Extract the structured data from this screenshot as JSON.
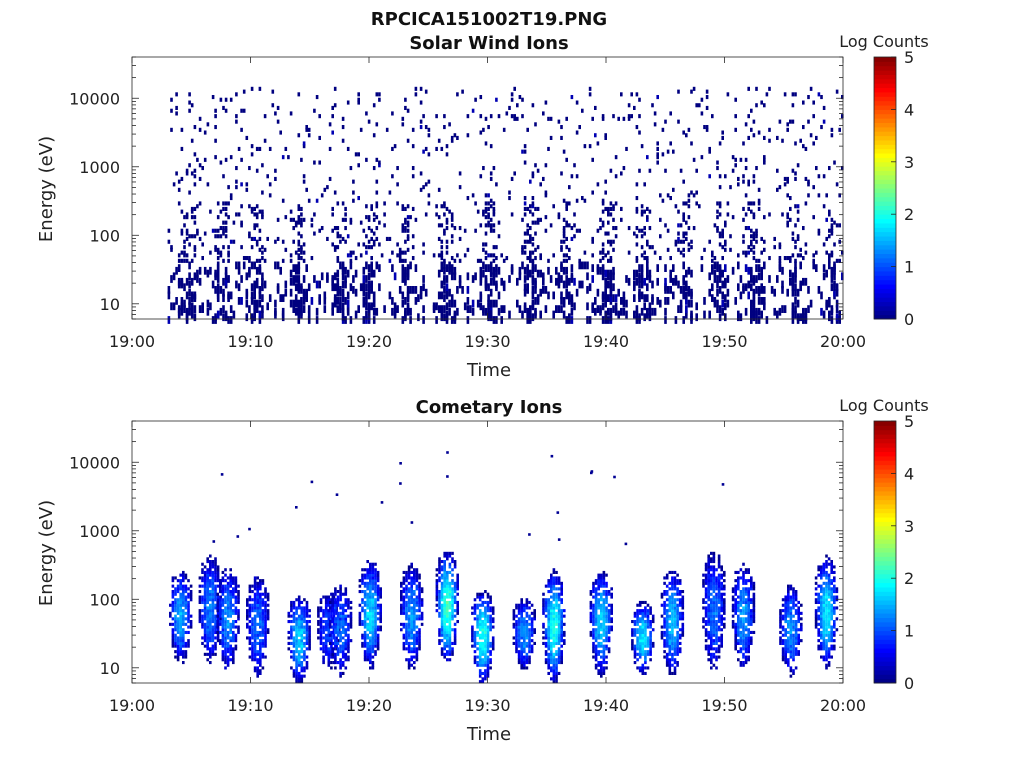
{
  "figure": {
    "title": "RPCICA151002T19.PNG"
  },
  "chart_data": [
    {
      "type": "heatmap",
      "title": "Solar Wind Ions",
      "xlabel": "Time",
      "ylabel": "Energy (eV)",
      "x_ticks": [
        "19:00",
        "19:10",
        "19:20",
        "19:30",
        "19:40",
        "19:50",
        "20:00"
      ],
      "xlim": [
        "19:00",
        "20:00"
      ],
      "y_scale": "log",
      "y_ticks": [
        "10",
        "100",
        "1000",
        "10000"
      ],
      "ylim": [
        6,
        40000
      ],
      "colorbar": {
        "label": "Log Counts",
        "ticks": [
          "0",
          "1",
          "2",
          "3",
          "4",
          "5"
        ],
        "range": [
          0,
          5
        ],
        "colormap": "jet"
      },
      "description_of_values": "sparse counts mostly at log level ~0 across all energies 5 eV–30 keV from 19:03 to 20:00, denser bursts at low energy (<300 eV)",
      "bursts_minutes": [
        4.5,
        7.5,
        10.5,
        14,
        17.5,
        20,
        23,
        26.5,
        30,
        33.5,
        36.5,
        40,
        43,
        46.5,
        49.5,
        52.5,
        56,
        59
      ],
      "sparse_time_range_minutes": [
        3,
        60
      ],
      "sparse_energy_range_eV": [
        6,
        15000
      ],
      "typical_level": 0
    },
    {
      "type": "heatmap",
      "title": "Cometary Ions",
      "xlabel": "Time",
      "ylabel": "Energy (eV)",
      "x_ticks": [
        "19:00",
        "19:10",
        "19:20",
        "19:30",
        "19:40",
        "19:50",
        "20:00"
      ],
      "xlim": [
        "19:00",
        "20:00"
      ],
      "y_scale": "log",
      "y_ticks": [
        "10",
        "100",
        "1000",
        "10000"
      ],
      "ylim": [
        6,
        40000
      ],
      "colorbar": {
        "label": "Log Counts",
        "ticks": [
          "0",
          "1",
          "2",
          "3",
          "4",
          "5"
        ],
        "range": [
          0,
          5
        ],
        "colormap": "jet"
      },
      "description_of_values": "periodic ion bursts every ~3.3 min between ~6 eV and ~500 eV, peak log counts ~1.5–2",
      "bursts": [
        {
          "t": 4.0,
          "elo": 12,
          "ehi": 250,
          "peak": 1.3
        },
        {
          "t": 6.5,
          "elo": 12,
          "ehi": 400,
          "peak": 1.1
        },
        {
          "t": 8.0,
          "elo": 10,
          "ehi": 260,
          "peak": 1.2
        },
        {
          "t": 10.5,
          "elo": 8,
          "ehi": 200,
          "peak": 1.0
        },
        {
          "t": 14.0,
          "elo": 6,
          "ehi": 110,
          "peak": 1.5
        },
        {
          "t": 16.5,
          "elo": 10,
          "ehi": 120,
          "peak": 0.8
        },
        {
          "t": 17.5,
          "elo": 8,
          "ehi": 150,
          "peak": 1.0
        },
        {
          "t": 20.0,
          "elo": 10,
          "ehi": 350,
          "peak": 1.5
        },
        {
          "t": 23.5,
          "elo": 10,
          "ehi": 300,
          "peak": 1.2
        },
        {
          "t": 26.5,
          "elo": 12,
          "ehi": 500,
          "peak": 2.0
        },
        {
          "t": 29.5,
          "elo": 6,
          "ehi": 130,
          "peak": 1.8
        },
        {
          "t": 33.0,
          "elo": 10,
          "ehi": 100,
          "peak": 1.2
        },
        {
          "t": 35.5,
          "elo": 6,
          "ehi": 250,
          "peak": 1.8
        },
        {
          "t": 39.5,
          "elo": 8,
          "ehi": 250,
          "peak": 1.5
        },
        {
          "t": 43.0,
          "elo": 8,
          "ehi": 90,
          "peak": 1.6
        },
        {
          "t": 45.5,
          "elo": 8,
          "ehi": 250,
          "peak": 1.4
        },
        {
          "t": 49.0,
          "elo": 10,
          "ehi": 450,
          "peak": 1.0
        },
        {
          "t": 51.5,
          "elo": 10,
          "ehi": 300,
          "peak": 1.2
        },
        {
          "t": 55.5,
          "elo": 8,
          "ehi": 150,
          "peak": 1.2
        },
        {
          "t": 58.5,
          "elo": 10,
          "ehi": 400,
          "peak": 1.6
        }
      ]
    }
  ]
}
